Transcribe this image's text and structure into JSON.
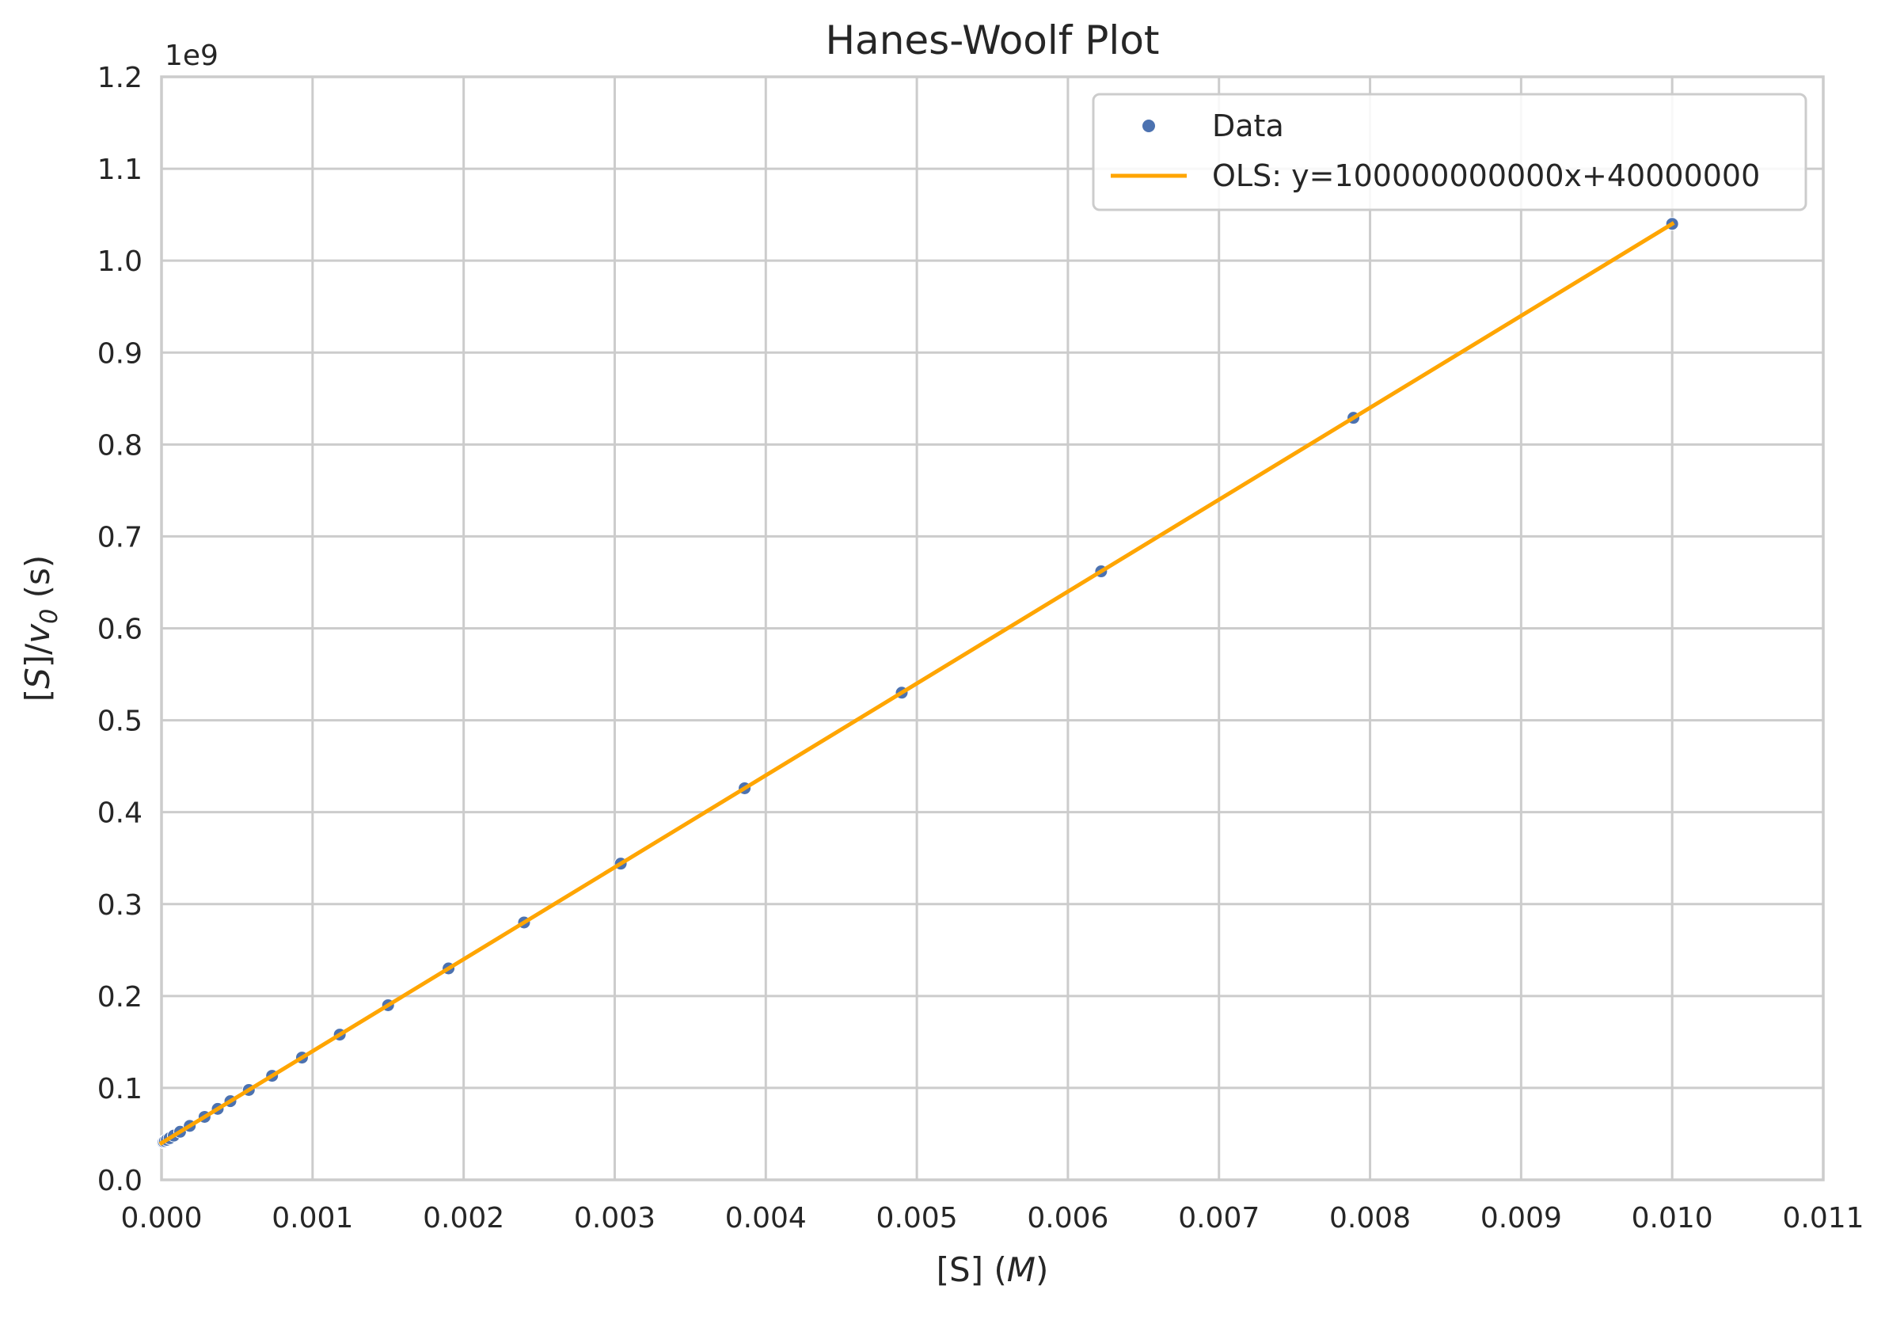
{
  "chart_data": {
    "type": "scatter",
    "title": "Hanes-Woolf Plot",
    "xlabel": "[S] (M)",
    "ylabel": "[S]/v0 (s)",
    "y_offset_label": "1e9",
    "xlim": [
      0.0,
      0.011
    ],
    "ylim": [
      0.0,
      1.2
    ],
    "y_scale_factor": 1000000000,
    "x_ticks": [
      0.0,
      0.001,
      0.002,
      0.003,
      0.004,
      0.005,
      0.006,
      0.007,
      0.008,
      0.009,
      0.01,
      0.011
    ],
    "x_tick_labels": [
      "0.000",
      "0.001",
      "0.002",
      "0.003",
      "0.004",
      "0.005",
      "0.006",
      "0.007",
      "0.008",
      "0.009",
      "0.010",
      "0.011"
    ],
    "y_ticks": [
      0.0,
      0.1,
      0.2,
      0.3,
      0.4,
      0.5,
      0.6,
      0.7,
      0.8,
      0.9,
      1.0,
      1.1,
      1.2
    ],
    "y_tick_labels": [
      "0.0",
      "0.1",
      "0.2",
      "0.3",
      "0.4",
      "0.5",
      "0.6",
      "0.7",
      "0.8",
      "0.9",
      "1.0",
      "1.1",
      "1.2"
    ],
    "grid": true,
    "legend_position": "top-right",
    "series": [
      {
        "name": "Data",
        "kind": "scatter",
        "color": "#4c72b0",
        "points": [
          [
            1e-05,
            0.041
          ],
          [
            1.52e-05,
            0.0415
          ],
          [
            2.3e-05,
            0.0423
          ],
          [
            3.52e-05,
            0.0435
          ],
          [
            5.34e-05,
            0.0453
          ],
          [
            8.12e-05,
            0.0481
          ],
          [
            0.000123,
            0.0523
          ],
          [
            0.000187,
            0.0587
          ],
          [
            0.000285,
            0.0685
          ],
          [
            0.000372,
            0.0772
          ],
          [
            0.000456,
            0.0856
          ],
          [
            0.000578,
            0.0978
          ],
          [
            0.000732,
            0.1132
          ],
          [
            0.00093,
            0.133
          ],
          [
            0.00118,
            0.158
          ],
          [
            0.0015,
            0.19
          ],
          [
            0.0019,
            0.23
          ],
          [
            0.0024,
            0.28
          ],
          [
            0.00304,
            0.344
          ],
          [
            0.00386,
            0.426
          ],
          [
            0.0049,
            0.53
          ],
          [
            0.00622,
            0.662
          ],
          [
            0.00789,
            0.829
          ],
          [
            0.01,
            1.04
          ]
        ]
      },
      {
        "name": "OLS: y=100000000000x+40000000",
        "kind": "line",
        "color": "#ffa500",
        "x": [
          0.0,
          0.01
        ],
        "y": [
          0.04,
          1.04
        ]
      }
    ]
  }
}
